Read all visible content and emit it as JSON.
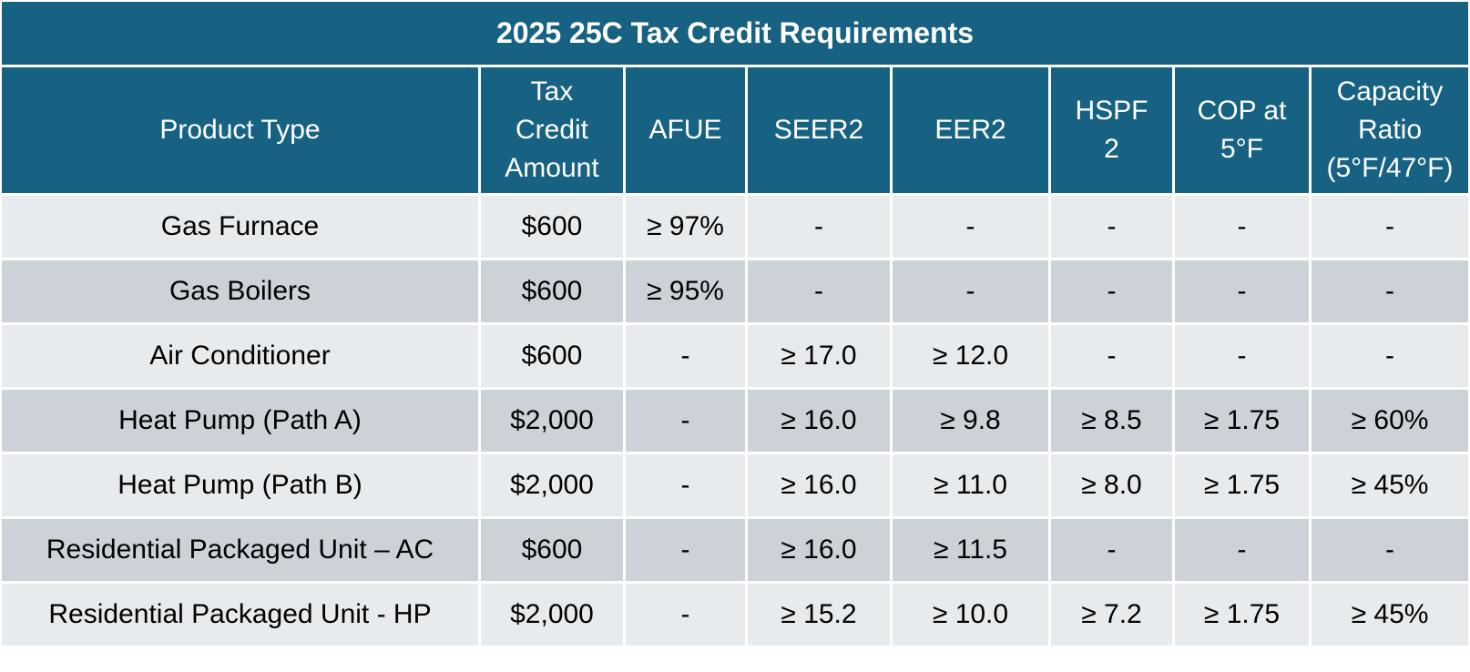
{
  "title": "2025 25C Tax Credit Requirements",
  "headers": {
    "product_type": "Product Type",
    "tax_credit_amount": [
      "Tax",
      "Credit",
      "Amount"
    ],
    "afue": "AFUE",
    "seer2": "SEER2",
    "eer2": "EER2",
    "hspf2": [
      "HSPF",
      "2"
    ],
    "cop": [
      "COP at",
      "5°F"
    ],
    "capacity_ratio": [
      "Capacity",
      "Ratio",
      "(5°F/47°F)"
    ]
  },
  "rows": [
    {
      "product": "Gas Furnace",
      "credit": "$600",
      "afue": "≥ 97%",
      "seer2": "-",
      "eer2": "-",
      "hspf2": "-",
      "cop": "-",
      "capacity": "-"
    },
    {
      "product": "Gas Boilers",
      "credit": "$600",
      "afue": "≥ 95%",
      "seer2": "-",
      "eer2": "-",
      "hspf2": "-",
      "cop": "-",
      "capacity": "-"
    },
    {
      "product": "Air Conditioner",
      "credit": "$600",
      "afue": "-",
      "seer2": "≥ 17.0",
      "eer2": "≥ 12.0",
      "hspf2": "-",
      "cop": "-",
      "capacity": "-"
    },
    {
      "product": "Heat Pump (Path A)",
      "credit": "$2,000",
      "afue": "-",
      "seer2": "≥ 16.0",
      "eer2": "≥ 9.8",
      "hspf2": "≥ 8.5",
      "cop": "≥ 1.75",
      "capacity": "≥ 60%"
    },
    {
      "product": "Heat Pump (Path B)",
      "credit": "$2,000",
      "afue": "-",
      "seer2": "≥ 16.0",
      "eer2": "≥ 11.0",
      "hspf2": "≥ 8.0",
      "cop": "≥ 1.75",
      "capacity": "≥ 45%"
    },
    {
      "product": "Residential Packaged Unit – AC",
      "credit": "$600",
      "afue": "-",
      "seer2": "≥ 16.0",
      "eer2": "≥ 11.5",
      "hspf2": "-",
      "cop": "-",
      "capacity": "-"
    },
    {
      "product": "Residential Packaged Unit - HP",
      "credit": "$2,000",
      "afue": "-",
      "seer2": "≥ 15.2",
      "eer2": "≥ 10.0",
      "hspf2": "≥ 7.2",
      "cop": "≥ 1.75",
      "capacity": "≥ 45%"
    }
  ],
  "colors": {
    "header_bg": "#176282",
    "row_light": "#e8ebee",
    "row_dark": "#cdd2d9"
  }
}
